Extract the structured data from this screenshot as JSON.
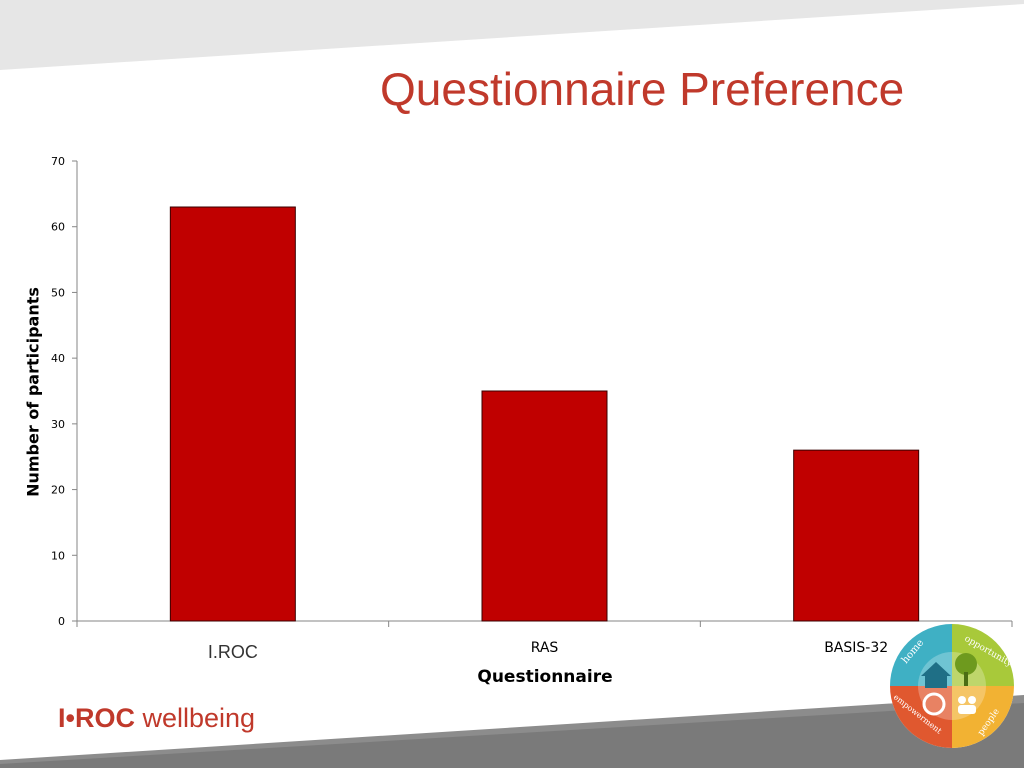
{
  "slide": {
    "title": "Questionnaire Preference",
    "logo_text_bold": "I•ROC",
    "logo_text_light": "wellbeing",
    "badge_words": [
      "home",
      "opportunity",
      "empowerment",
      "people"
    ]
  },
  "colors": {
    "bar_fill": "#c00000",
    "title": "#c0392b",
    "header_band": "#e6e6e6",
    "footer_band": "#8c8c8c"
  },
  "chart_data": {
    "type": "bar",
    "categories": [
      "I.ROC",
      "RAS",
      "BASIS-32"
    ],
    "values": [
      63,
      35,
      26
    ],
    "xlabel": "Questionnaire",
    "ylabel": "Number of participants",
    "ylim": [
      0,
      70
    ],
    "yticks": [
      0,
      10,
      20,
      30,
      40,
      50,
      60,
      70
    ],
    "grid": false,
    "legend": "none"
  }
}
